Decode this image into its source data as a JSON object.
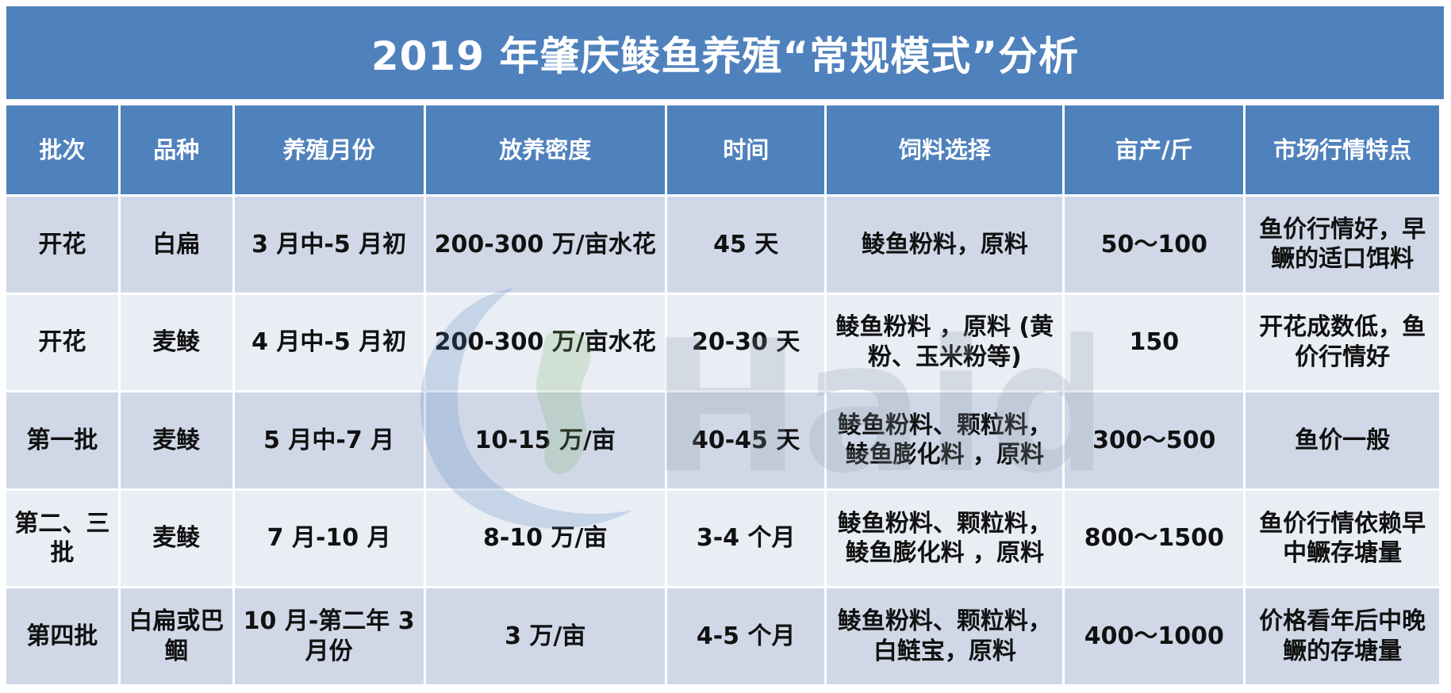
{
  "title": "2019 年肇庆鲮鱼养殖“常规模式”分析",
  "headers": [
    "批次",
    "品种",
    "养殖月份",
    "放养密度",
    "时间",
    "饲料选择",
    "亩产/斤",
    "市场行情特点"
  ],
  "rows": [
    [
      "开花",
      "白扁",
      "3 月中-5 月初",
      "200-300 万/亩水花",
      "45 天",
      "鲮鱼粉料，原料",
      "50～100",
      "鱼价行情好，早鳜的适口饵料"
    ],
    [
      "开花",
      "麦鲮",
      "4 月中-5 月初",
      "200-300 万/亩水花",
      "20-30 天",
      "鲮鱼粉料 ，原料 (黄粉、玉米粉等)",
      "150",
      "开花成数低，鱼价行情好"
    ],
    [
      "第一批",
      "麦鲮",
      "5 月中-7 月",
      "10-15 万/亩",
      "40-45 天",
      "鲮鱼粉料、颗粒料，鲮鱼膨化料 ，原料",
      "300～500",
      "鱼价一般"
    ],
    [
      "第二、三批",
      "麦鲮",
      "7 月-10 月",
      "8-10 万/亩",
      "3-4 个月",
      "鲮鱼粉料、颗粒料，鲮鱼膨化料 ，原料",
      "800～1500",
      "鱼价行情依赖早中鳜存塘量"
    ],
    [
      "第四批",
      "白扁或巴鲴",
      "10 月-第二年 3 月份",
      "3 万/亩",
      "4-5 个月",
      "鲮鱼粉料、颗粒料，白鲢宝，原料",
      "400～1000",
      "价格看年后中晚鳜的存塘量"
    ]
  ],
  "watermark": {
    "text": "Haid",
    "icon": "haid-logo-icon"
  },
  "colors": {
    "header": "#4f81bd",
    "row_odd": "#d0d8e8",
    "row_even": "#e9edf4"
  }
}
